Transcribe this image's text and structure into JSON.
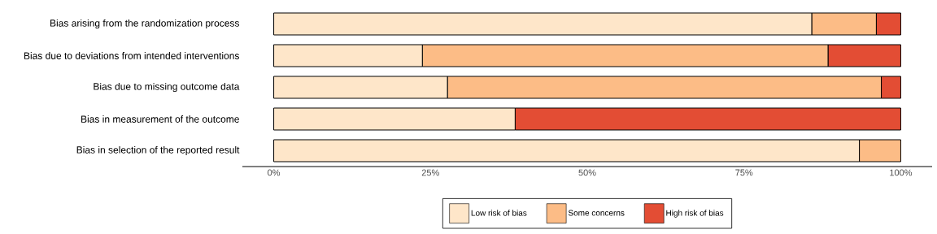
{
  "chart_data": {
    "type": "bar",
    "orientation": "horizontal",
    "stacked": true,
    "legend": "bottom",
    "categories": [
      "Bias arising from the randomization process",
      "Bias due to deviations from intended interventions",
      "Bias due to missing outcome data",
      "Bias in measurement of the outcome",
      "Bias in selection of the reported result"
    ],
    "series": [
      {
        "name": "Low risk of bias",
        "color": "#fee6c9",
        "values": [
          85.8,
          23.7,
          27.7,
          38.5,
          93.4
        ]
      },
      {
        "name": "Some concerns",
        "color": "#fcbc86",
        "values": [
          10.3,
          64.7,
          69.2,
          0,
          6.6
        ]
      },
      {
        "name": "High risk of bias",
        "color": "#e34d34",
        "values": [
          3.9,
          11.6,
          3.1,
          61.5,
          0
        ]
      }
    ],
    "xlim": [
      -5,
      105
    ],
    "xticks": [
      {
        "value": 0,
        "label": "0%"
      },
      {
        "value": 25,
        "label": "25%"
      },
      {
        "value": 50,
        "label": "50%"
      },
      {
        "value": 75,
        "label": "75%"
      },
      {
        "value": 100,
        "label": "100%"
      }
    ]
  }
}
